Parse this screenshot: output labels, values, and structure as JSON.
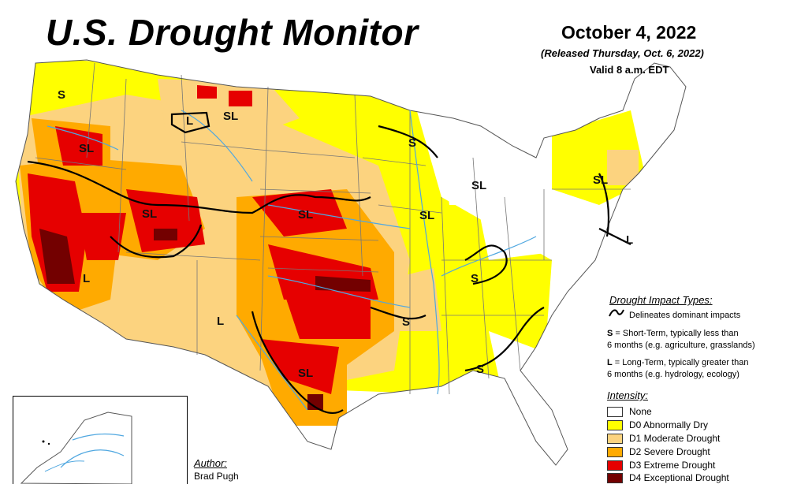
{
  "header": {
    "title": "U.S. Drought Monitor",
    "date": "October 4, 2022",
    "released": "(Released Thursday, Oct. 6, 2022)",
    "valid": "Valid 8 a.m. EDT"
  },
  "map_labels": {
    "s_northwest": "S",
    "l_montana": "L",
    "sl_montana": "SL",
    "sl_oregon": "SL",
    "sl_nebraska": "SL",
    "l_nevada": "L",
    "l_newmexico": "L",
    "sl_texas": "SL",
    "s_arkansas": "S",
    "s_wisconsin": "S",
    "sl_michigan": "SL",
    "sl_illinois": "SL",
    "s_kentucky": "S",
    "s_alabama": "S",
    "sl_newengland": "SL",
    "l_midatlantic": "L"
  },
  "impact_types": {
    "heading": "Drought Impact Types:",
    "delineates": "Delineates dominant impacts",
    "short_term_key": "S",
    "short_term_line1": " = Short-Term, typically less than",
    "short_term_line2": "6 months (e.g. agriculture, grasslands)",
    "long_term_key": "L",
    "long_term_line1": " = Long-Term, typically greater than",
    "long_term_line2": "6 months (e.g. hydrology, ecology)"
  },
  "intensity": {
    "heading": "Intensity:",
    "levels": [
      {
        "label": "None",
        "color": "#ffffff"
      },
      {
        "label": "D0 Abnormally Dry",
        "color": "#ffff00"
      },
      {
        "label": "D1 Moderate Drought",
        "color": "#fcd37f"
      },
      {
        "label": "D2 Severe Drought",
        "color": "#ffaa00"
      },
      {
        "label": "D3 Extreme Drought",
        "color": "#e60000"
      },
      {
        "label": "D4 Exceptional Drought",
        "color": "#730000"
      }
    ]
  },
  "author": {
    "label": "Author:",
    "name": "Brad Pugh"
  },
  "colors": {
    "water": "#4fa7e0",
    "boundary": "#000000",
    "state_line": "#777777"
  }
}
